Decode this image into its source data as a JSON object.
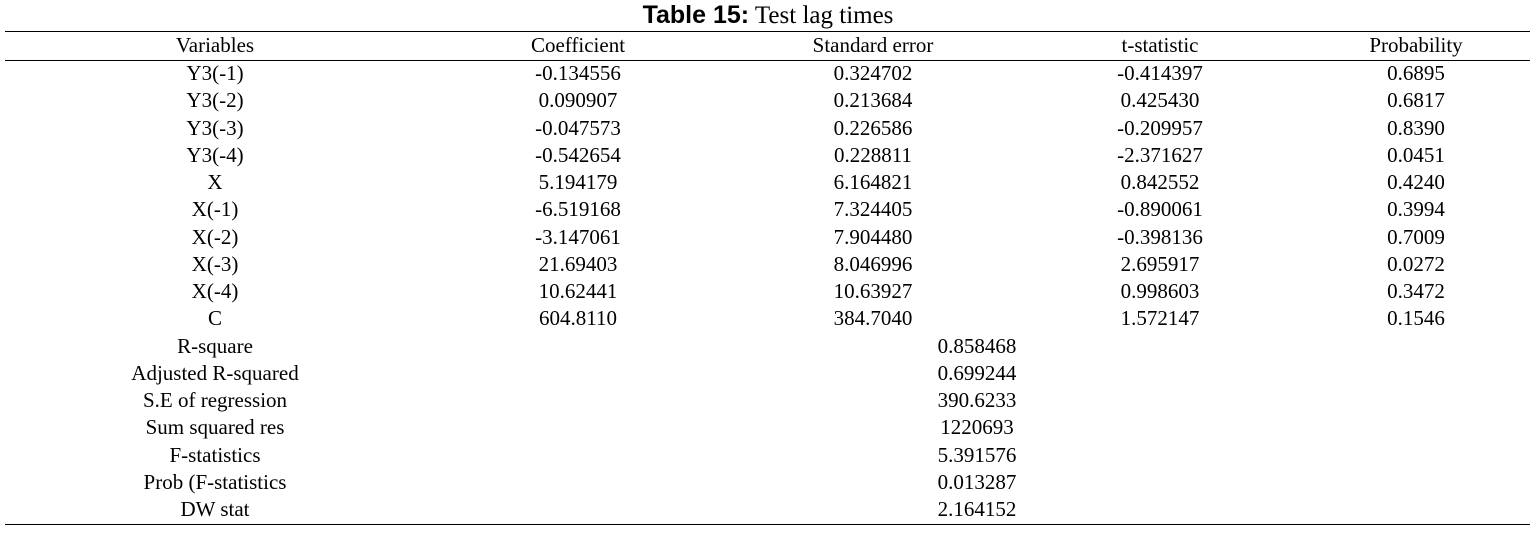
{
  "title": {
    "label": "Table 15:",
    "text": "Test lag times"
  },
  "table": {
    "header": [
      "Variables",
      "Coefficient",
      "Standard error",
      "t-statistic",
      "Probability"
    ],
    "rows": [
      [
        "Y3(-1)",
        "-0.134556",
        "0.324702",
        "-0.414397",
        "0.6895"
      ],
      [
        "Y3(-2)",
        "0.090907",
        "0.213684",
        "0.425430",
        "0.6817"
      ],
      [
        "Y3(-3)",
        "-0.047573",
        "0.226586",
        "-0.209957",
        "0.8390"
      ],
      [
        "Y3(-4)",
        "-0.542654",
        "0.228811",
        "-2.371627",
        "0.0451"
      ],
      [
        "X",
        "5.194179",
        "6.164821",
        "0.842552",
        "0.4240"
      ],
      [
        "X(-1)",
        "-6.519168",
        "7.324405",
        "-0.890061",
        "0.3994"
      ],
      [
        "X(-2)",
        "-3.147061",
        "7.904480",
        "-0.398136",
        "0.7009"
      ],
      [
        "X(-3)",
        "21.69403",
        "8.046996",
        "2.695917",
        "0.0272"
      ],
      [
        "X(-4)",
        "10.62441",
        "10.63927",
        "0.998603",
        "0.3472"
      ],
      [
        "C",
        "604.8110",
        "384.7040",
        "1.572147",
        "0.1546"
      ]
    ],
    "stats": [
      [
        "R-square",
        "0.858468"
      ],
      [
        "Adjusted R-squared",
        "0.699244"
      ],
      [
        "S.E of regression",
        "390.6233"
      ],
      [
        "Sum squared res",
        "1220693"
      ],
      [
        "F-statistics",
        "5.391576"
      ],
      [
        "Prob (F-statistics",
        "0.013287"
      ],
      [
        "DW stat",
        "2.164152"
      ]
    ]
  }
}
